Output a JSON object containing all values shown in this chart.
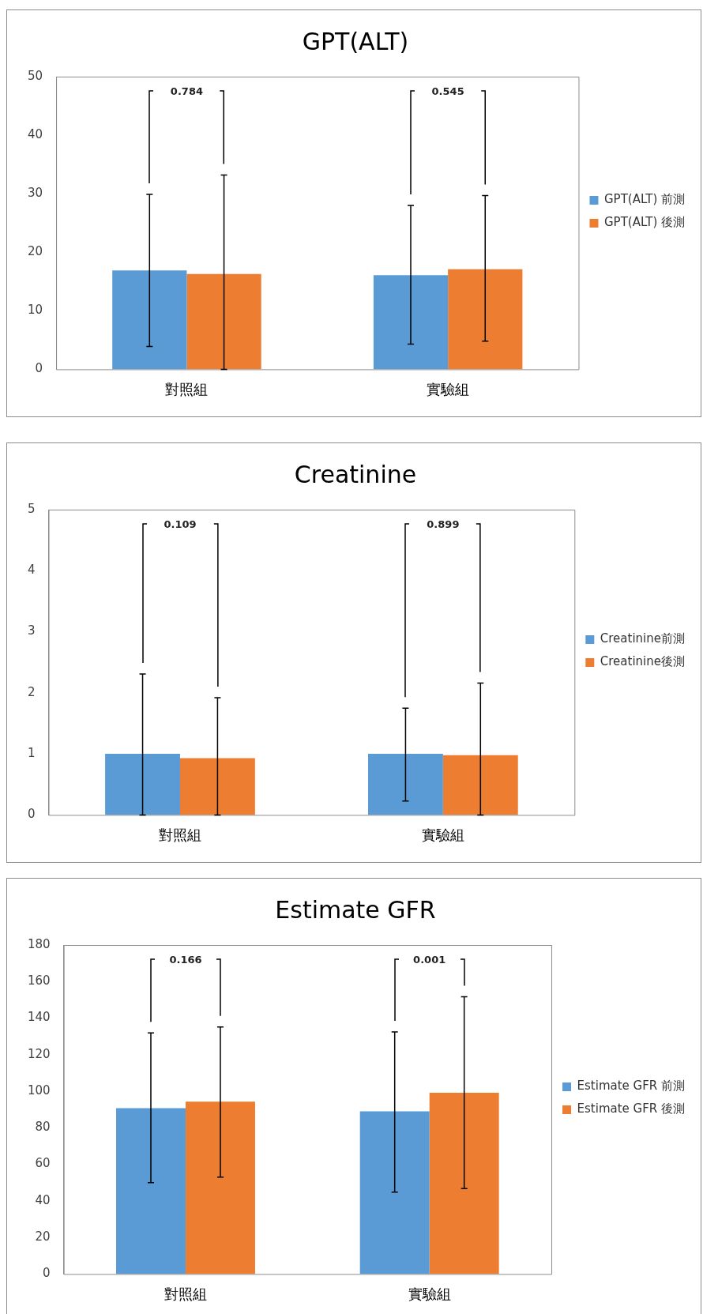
{
  "chart_data": [
    {
      "type": "bar",
      "title": "GPT(ALT)",
      "categories": [
        "對照組",
        "實驗組"
      ],
      "series": [
        {
          "name": "GPT(ALT) 前測",
          "color": "#5b9bd5",
          "values": [
            16.9,
            16.1
          ],
          "errors": [
            [
              3.9,
              29.9
            ],
            [
              4.3,
              28.0
            ]
          ]
        },
        {
          "name": "GPT(ALT) 後測",
          "color": "#ed7d31",
          "values": [
            16.3,
            17.1
          ],
          "errors": [
            [
              0,
              33.2
            ],
            [
              4.8,
              29.7
            ]
          ]
        }
      ],
      "ylim": [
        0,
        50
      ],
      "yticks": [
        0,
        10,
        20,
        30,
        40,
        50
      ],
      "legend": "right",
      "annotations": [
        "0.784",
        "0.545"
      ]
    },
    {
      "type": "bar",
      "title": "Creatinine",
      "categories": [
        "對照組",
        "實驗組"
      ],
      "series": [
        {
          "name": "Creatinine前測",
          "color": "#5b9bd5",
          "values": [
            1.0,
            1.0
          ],
          "errors": [
            [
              0,
              2.31
            ],
            [
              0.23,
              1.75
            ]
          ]
        },
        {
          "name": "Creatinine後測",
          "color": "#ed7d31",
          "values": [
            0.93,
            0.98
          ],
          "errors": [
            [
              0,
              1.92
            ],
            [
              0,
              2.16
            ]
          ]
        }
      ],
      "ylim": [
        0,
        5
      ],
      "yticks": [
        0,
        1,
        2,
        3,
        4,
        5
      ],
      "legend": "right",
      "annotations": [
        "0.109",
        "0.899"
      ]
    },
    {
      "type": "bar",
      "title": "Estimate GFR",
      "categories": [
        "對照組",
        "實驗組"
      ],
      "series": [
        {
          "name": "Estimate GFR 前測",
          "color": "#5b9bd5",
          "values": [
            90.7,
            89.0
          ],
          "errors": [
            [
              50.0,
              131.9
            ],
            [
              44.8,
              132.5
            ]
          ]
        },
        {
          "name": "Estimate GFR 後測",
          "color": "#ed7d31",
          "values": [
            94.3,
            99.2
          ],
          "errors": [
            [
              53.0,
              135.2
            ],
            [
              46.7,
              151.7
            ]
          ]
        }
      ],
      "ylim": [
        0,
        180
      ],
      "yticks": [
        0,
        20,
        40,
        60,
        80,
        100,
        120,
        140,
        160,
        180
      ],
      "legend": "right",
      "annotations": [
        "0.166",
        "0.001"
      ]
    }
  ]
}
